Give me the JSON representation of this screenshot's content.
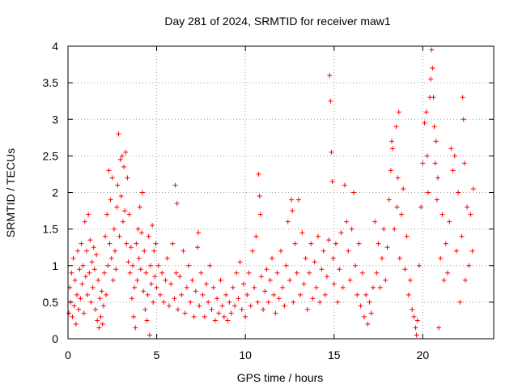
{
  "chart_data": {
    "type": "scatter",
    "title": "Day 281 of 2024, SRMTID for receiver maw1",
    "xlabel": "GPS time / hours",
    "ylabel": "SRMTID / TECUs",
    "xlim": [
      0,
      24
    ],
    "ylim": [
      0,
      4
    ],
    "xticks": [
      0,
      5,
      10,
      15,
      20
    ],
    "xtick_labels": [
      "0",
      "5",
      "10",
      "15",
      "20"
    ],
    "yticks": [
      0,
      0.5,
      1,
      1.5,
      2,
      2.5,
      3,
      3.5,
      4
    ],
    "ytick_labels": [
      "0",
      "0.5",
      "1",
      "1.5",
      "2",
      "2.5",
      "3",
      "3.5",
      "4"
    ],
    "grid": true,
    "marker": "plus",
    "color": "#ff0000",
    "series": [
      {
        "name": "maw1",
        "points": [
          [
            0.05,
            0.35
          ],
          [
            0.1,
            0.7
          ],
          [
            0.15,
            0.5
          ],
          [
            0.2,
            0.9
          ],
          [
            0.25,
            0.3
          ],
          [
            0.3,
            1.1
          ],
          [
            0.35,
            0.45
          ],
          [
            0.4,
            0.8
          ],
          [
            0.45,
            0.2
          ],
          [
            0.5,
            0.6
          ],
          [
            0.55,
            1.2
          ],
          [
            0.6,
            0.4
          ],
          [
            0.65,
            0.95
          ],
          [
            0.7,
            0.55
          ],
          [
            0.75,
            1.3
          ],
          [
            0.8,
            0.75
          ],
          [
            0.85,
            1.0
          ],
          [
            0.9,
            0.35
          ],
          [
            0.95,
            1.6
          ],
          [
            1.0,
            0.85
          ],
          [
            1.05,
            1.2
          ],
          [
            1.1,
            0.6
          ],
          [
            1.15,
            1.7
          ],
          [
            1.2,
            0.9
          ],
          [
            1.25,
            1.35
          ],
          [
            1.3,
            0.5
          ],
          [
            1.35,
            1.05
          ],
          [
            1.4,
            0.7
          ],
          [
            1.45,
            1.25
          ],
          [
            1.5,
            0.95
          ],
          [
            1.55,
            0.4
          ],
          [
            1.6,
            1.15
          ],
          [
            1.65,
            0.25
          ],
          [
            1.7,
            0.8
          ],
          [
            1.75,
            0.15
          ],
          [
            1.8,
            0.55
          ],
          [
            1.85,
            0.3
          ],
          [
            1.9,
            0.65
          ],
          [
            1.95,
            0.2
          ],
          [
            2.0,
            0.45
          ],
          [
            2.05,
            0.9
          ],
          [
            2.1,
            1.4
          ],
          [
            2.15,
            0.6
          ],
          [
            2.2,
            1.7
          ],
          [
            2.25,
            1.0
          ],
          [
            2.3,
            2.3
          ],
          [
            2.35,
            1.3
          ],
          [
            2.4,
            1.9
          ],
          [
            2.45,
            1.1
          ],
          [
            2.5,
            2.2
          ],
          [
            2.55,
            0.8
          ],
          [
            2.6,
            1.5
          ],
          [
            2.65,
            1.2
          ],
          [
            2.7,
            0.95
          ],
          [
            2.75,
            1.8
          ],
          [
            2.8,
            2.1
          ],
          [
            2.85,
            2.8
          ],
          [
            2.9,
            1.4
          ],
          [
            2.95,
            2.45
          ],
          [
            3.0,
            1.95
          ],
          [
            3.05,
            2.5
          ],
          [
            3.1,
            1.6
          ],
          [
            3.15,
            2.35
          ],
          [
            3.2,
            1.75
          ],
          [
            3.25,
            2.55
          ],
          [
            3.3,
            1.3
          ],
          [
            3.35,
            2.2
          ],
          [
            3.4,
            1.05
          ],
          [
            3.45,
            1.7
          ],
          [
            3.5,
            0.9
          ],
          [
            3.55,
            1.25
          ],
          [
            3.6,
            0.55
          ],
          [
            3.65,
            1.0
          ],
          [
            3.7,
            0.3
          ],
          [
            3.75,
            0.7
          ],
          [
            3.8,
            0.15
          ],
          [
            3.85,
            1.3
          ],
          [
            3.9,
            0.8
          ],
          [
            3.95,
            1.5
          ],
          [
            4.0,
            1.1
          ],
          [
            4.05,
            1.8
          ],
          [
            4.1,
            0.95
          ],
          [
            4.15,
            1.45
          ],
          [
            4.2,
            2.0
          ],
          [
            4.25,
            0.65
          ],
          [
            4.3,
            1.2
          ],
          [
            4.35,
            0.4
          ],
          [
            4.4,
            0.9
          ],
          [
            4.45,
            0.25
          ],
          [
            4.5,
            0.6
          ],
          [
            4.55,
            1.4
          ],
          [
            4.6,
            0.05
          ],
          [
            4.65,
            1.0
          ],
          [
            4.7,
            0.75
          ],
          [
            4.75,
            1.55
          ],
          [
            4.8,
            0.5
          ],
          [
            4.85,
            1.2
          ],
          [
            4.9,
            0.85
          ],
          [
            4.95,
            1.3
          ],
          [
            5.0,
            0.7
          ],
          [
            5.1,
            1.0
          ],
          [
            5.2,
            0.6
          ],
          [
            5.3,
            0.9
          ],
          [
            5.4,
            0.5
          ],
          [
            5.5,
            0.8
          ],
          [
            5.6,
            1.1
          ],
          [
            5.7,
            0.45
          ],
          [
            5.8,
            0.75
          ],
          [
            5.9,
            1.3
          ],
          [
            6.0,
            0.55
          ],
          [
            6.05,
            2.1
          ],
          [
            6.1,
            0.9
          ],
          [
            6.15,
            1.85
          ],
          [
            6.2,
            0.4
          ],
          [
            6.3,
            0.85
          ],
          [
            6.4,
            0.6
          ],
          [
            6.5,
            1.2
          ],
          [
            6.6,
            0.35
          ],
          [
            6.7,
            0.7
          ],
          [
            6.8,
            1.0
          ],
          [
            6.9,
            0.5
          ],
          [
            7.0,
            0.8
          ],
          [
            7.1,
            0.3
          ],
          [
            7.2,
            0.65
          ],
          [
            7.3,
            1.25
          ],
          [
            7.35,
            1.45
          ],
          [
            7.4,
            0.45
          ],
          [
            7.5,
            0.9
          ],
          [
            7.6,
            0.6
          ],
          [
            7.7,
            0.3
          ],
          [
            7.8,
            0.75
          ],
          [
            7.9,
            0.5
          ],
          [
            8.0,
            1.0
          ],
          [
            8.1,
            0.4
          ],
          [
            8.2,
            0.7
          ],
          [
            8.3,
            0.25
          ],
          [
            8.4,
            0.55
          ],
          [
            8.5,
            0.35
          ],
          [
            8.6,
            0.8
          ],
          [
            8.7,
            0.45
          ],
          [
            8.8,
            0.3
          ],
          [
            8.9,
            0.6
          ],
          [
            9.0,
            0.25
          ],
          [
            9.1,
            0.5
          ],
          [
            9.2,
            0.35
          ],
          [
            9.3,
            0.7
          ],
          [
            9.4,
            0.45
          ],
          [
            9.5,
            0.9
          ],
          [
            9.6,
            0.55
          ],
          [
            9.7,
            1.05
          ],
          [
            9.8,
            0.4
          ],
          [
            9.9,
            0.75
          ],
          [
            10.0,
            0.3
          ],
          [
            10.1,
            0.6
          ],
          [
            10.2,
            0.9
          ],
          [
            10.3,
            0.45
          ],
          [
            10.4,
            1.2
          ],
          [
            10.5,
            0.7
          ],
          [
            10.6,
            1.4
          ],
          [
            10.7,
            0.5
          ],
          [
            10.75,
            2.25
          ],
          [
            10.8,
            1.95
          ],
          [
            10.85,
            1.7
          ],
          [
            10.9,
            0.85
          ],
          [
            11.0,
            0.4
          ],
          [
            11.1,
            0.65
          ],
          [
            11.2,
            0.95
          ],
          [
            11.3,
            0.5
          ],
          [
            11.4,
            0.8
          ],
          [
            11.5,
            1.1
          ],
          [
            11.6,
            0.6
          ],
          [
            11.7,
            0.35
          ],
          [
            11.8,
            0.9
          ],
          [
            11.9,
            0.55
          ],
          [
            12.0,
            1.2
          ],
          [
            12.1,
            0.7
          ],
          [
            12.2,
            0.45
          ],
          [
            12.3,
            1.0
          ],
          [
            12.4,
            1.6
          ],
          [
            12.5,
            0.8
          ],
          [
            12.6,
            1.9
          ],
          [
            12.65,
            1.75
          ],
          [
            12.7,
            0.5
          ],
          [
            12.8,
            1.3
          ],
          [
            12.9,
            0.9
          ],
          [
            13.0,
            1.9
          ],
          [
            13.1,
            0.6
          ],
          [
            13.2,
            1.45
          ],
          [
            13.3,
            0.75
          ],
          [
            13.4,
            1.1
          ],
          [
            13.5,
            0.4
          ],
          [
            13.6,
            0.9
          ],
          [
            13.7,
            1.3
          ],
          [
            13.8,
            0.55
          ],
          [
            13.9,
            1.05
          ],
          [
            14.0,
            0.7
          ],
          [
            14.1,
            1.4
          ],
          [
            14.2,
            0.5
          ],
          [
            14.3,
            0.95
          ],
          [
            14.4,
            1.2
          ],
          [
            14.5,
            0.6
          ],
          [
            14.6,
            0.85
          ],
          [
            14.7,
            1.35
          ],
          [
            14.75,
            3.6
          ],
          [
            14.8,
            3.25
          ],
          [
            14.85,
            2.55
          ],
          [
            14.9,
            2.15
          ],
          [
            14.95,
            1.1
          ],
          [
            15.0,
            0.75
          ],
          [
            15.1,
            1.3
          ],
          [
            15.2,
            0.5
          ],
          [
            15.3,
            0.95
          ],
          [
            15.4,
            1.45
          ],
          [
            15.5,
            0.7
          ],
          [
            15.6,
            2.1
          ],
          [
            15.7,
            1.6
          ],
          [
            15.8,
            1.2
          ],
          [
            15.9,
            0.8
          ],
          [
            16.0,
            1.5
          ],
          [
            16.1,
            2.0
          ],
          [
            16.2,
            1.0
          ],
          [
            16.3,
            0.6
          ],
          [
            16.4,
            1.3
          ],
          [
            16.5,
            0.45
          ],
          [
            16.6,
            0.9
          ],
          [
            16.7,
            0.3
          ],
          [
            16.8,
            0.6
          ],
          [
            16.9,
            0.2
          ],
          [
            17.0,
            0.5
          ],
          [
            17.1,
            0.35
          ],
          [
            17.2,
            0.7
          ],
          [
            17.3,
            1.6
          ],
          [
            17.4,
            0.9
          ],
          [
            17.5,
            1.3
          ],
          [
            17.6,
            0.7
          ],
          [
            17.7,
            1.1
          ],
          [
            17.8,
            1.5
          ],
          [
            17.9,
            0.8
          ],
          [
            18.0,
            1.25
          ],
          [
            18.1,
            1.9
          ],
          [
            18.2,
            2.3
          ],
          [
            18.25,
            2.7
          ],
          [
            18.3,
            2.6
          ],
          [
            18.4,
            1.5
          ],
          [
            18.5,
            2.9
          ],
          [
            18.55,
            1.8
          ],
          [
            18.6,
            2.2
          ],
          [
            18.65,
            3.1
          ],
          [
            18.7,
            1.1
          ],
          [
            18.8,
            1.7
          ],
          [
            18.9,
            2.05
          ],
          [
            19.0,
            0.95
          ],
          [
            19.1,
            1.4
          ],
          [
            19.2,
            0.6
          ],
          [
            19.3,
            0.8
          ],
          [
            19.4,
            0.4
          ],
          [
            19.5,
            0.3
          ],
          [
            19.6,
            0.15
          ],
          [
            19.65,
            0.05
          ],
          [
            19.7,
            0.25
          ],
          [
            19.8,
            1.0
          ],
          [
            19.9,
            1.8
          ],
          [
            20.0,
            2.4
          ],
          [
            20.1,
            2.95
          ],
          [
            20.2,
            3.1
          ],
          [
            20.25,
            2.5
          ],
          [
            20.3,
            2.0
          ],
          [
            20.4,
            3.3
          ],
          [
            20.45,
            3.55
          ],
          [
            20.5,
            3.95
          ],
          [
            20.55,
            3.7
          ],
          [
            20.6,
            3.3
          ],
          [
            20.65,
            2.9
          ],
          [
            20.7,
            2.4
          ],
          [
            20.75,
            2.7
          ],
          [
            20.8,
            1.9
          ],
          [
            20.85,
            2.2
          ],
          [
            20.9,
            0.15
          ],
          [
            21.0,
            1.1
          ],
          [
            21.1,
            1.7
          ],
          [
            21.2,
            0.8
          ],
          [
            21.3,
            1.3
          ],
          [
            21.4,
            0.9
          ],
          [
            21.5,
            1.6
          ],
          [
            21.6,
            2.6
          ],
          [
            21.7,
            2.3
          ],
          [
            21.8,
            2.5
          ],
          [
            21.9,
            1.2
          ],
          [
            22.0,
            2.0
          ],
          [
            22.1,
            0.5
          ],
          [
            22.2,
            1.4
          ],
          [
            22.25,
            3.3
          ],
          [
            22.3,
            3.0
          ],
          [
            22.35,
            2.4
          ],
          [
            22.4,
            0.8
          ],
          [
            22.5,
            1.8
          ],
          [
            22.6,
            1.0
          ],
          [
            22.7,
            1.7
          ],
          [
            22.8,
            1.2
          ],
          [
            22.85,
            2.05
          ]
        ]
      }
    ]
  }
}
